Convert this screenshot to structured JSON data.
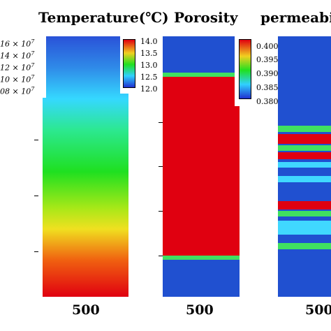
{
  "titles": {
    "temperature": "Temperature(℃)",
    "porosity": "Porosity",
    "permeability": "permeabi"
  },
  "sci_labels": [
    "16 × 10",
    "14 × 10",
    "12 × 10",
    "10 × 10",
    "08 × 10"
  ],
  "sci_exp": "7",
  "chart_data": [
    {
      "type": "heatmap",
      "title": "Temperature(℃)",
      "colorbar": {
        "min": 12.0,
        "max": 14.0,
        "ticks": [
          "14.0",
          "13.5",
          "13.0",
          "12.5",
          "12.0"
        ]
      },
      "xticks": [
        "500"
      ],
      "colors": {
        "top": "#2050d0",
        "upper": "#30d0ff",
        "middle": "#20e020",
        "lower": "#f0e020",
        "bottom": "#e00010"
      }
    },
    {
      "type": "heatmap",
      "title": "Porosity",
      "colorbar": {
        "min": 0.38,
        "max": 0.4,
        "ticks": [
          "0.400",
          "0.395",
          "0.390",
          "0.385",
          "0.380"
        ]
      },
      "xticks": [
        "500"
      ],
      "colors": {
        "low": "#2050d0",
        "high": "#e00010",
        "boundary": "#40e060"
      }
    },
    {
      "type": "heatmap",
      "title": "permeabi",
      "xticks": [
        "500"
      ],
      "colors": {
        "low": "#2050d0",
        "high": "#e00010",
        "mid": "#40e060",
        "cyan": "#40d8ff"
      }
    }
  ]
}
